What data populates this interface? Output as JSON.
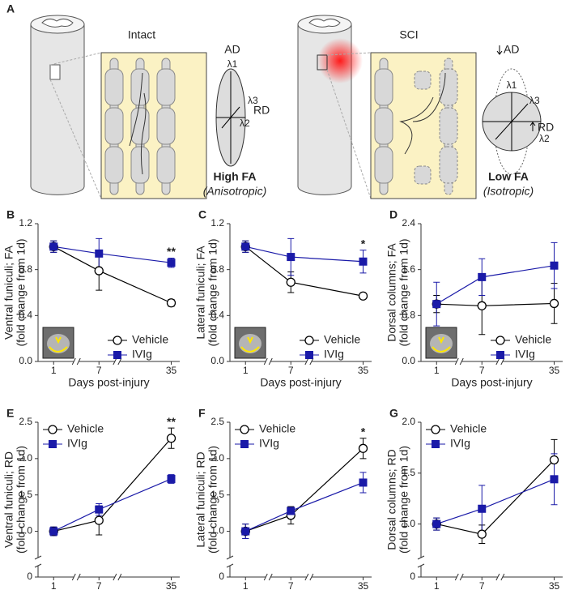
{
  "diagram": {
    "panel": "A",
    "left": {
      "title": "Intact",
      "ad": "AD",
      "l1": "λ1",
      "l3": "λ3",
      "rd": "RD",
      "l2": "λ2",
      "fa": "High FA",
      "kind": "(Anisotropic)"
    },
    "right": {
      "title": "SCI",
      "ad": "AD",
      "l1": "λ1",
      "l3": "λ3",
      "rd": "RD",
      "l2": "λ2",
      "fa": "Low FA",
      "kind": "(Isotropic)"
    }
  },
  "chart_data": [
    {
      "type": "line",
      "panel": "B",
      "ylabel": [
        "Ventral funiculi; FA",
        "(fold change from 1d)"
      ],
      "xlabel": "Days post-injury",
      "categories": [
        "1",
        "7",
        "35"
      ],
      "ylim": [
        0,
        1.2
      ],
      "yticks": [
        {
          "value": 0,
          "label": "0.0"
        },
        0.4,
        0.8,
        1.2
      ],
      "legend": "lower right",
      "annotation": "**",
      "inset": true,
      "series": [
        {
          "name": "Vehicle",
          "color": "#000000",
          "marker": "circle",
          "values": [
            1.0,
            0.79,
            0.51
          ],
          "errors": [
            0.05,
            0.17,
            0.03
          ]
        },
        {
          "name": "IVIg",
          "color": "#1a1aa8",
          "marker": "square",
          "values": [
            1.0,
            0.94,
            0.86
          ],
          "errors": [
            0.05,
            0.13,
            0.04
          ]
        }
      ]
    },
    {
      "type": "line",
      "panel": "C",
      "ylabel": [
        "Lateral funiculi; FA",
        "(fold change from 1d)"
      ],
      "xlabel": "Days post-injury",
      "categories": [
        "1",
        "7",
        "35"
      ],
      "ylim": [
        0,
        1.2
      ],
      "yticks": [
        {
          "value": 0,
          "label": "0.0"
        },
        0.4,
        0.8,
        1.2
      ],
      "legend": "lower right",
      "annotation": "*",
      "inset": true,
      "series": [
        {
          "name": "Vehicle",
          "color": "#000000",
          "marker": "circle",
          "values": [
            1.0,
            0.69,
            0.57
          ],
          "errors": [
            0.05,
            0.09,
            0.01
          ]
        },
        {
          "name": "IVIg",
          "color": "#1a1aa8",
          "marker": "square",
          "values": [
            1.0,
            0.91,
            0.87
          ],
          "errors": [
            0.05,
            0.16,
            0.1
          ]
        }
      ]
    },
    {
      "type": "line",
      "panel": "D",
      "ylabel": [
        "Dorsal columns; FA",
        "(fold change from 1d)"
      ],
      "xlabel": "Days post-injury",
      "categories": [
        "1",
        "7",
        "35"
      ],
      "ylim": [
        0,
        2.4
      ],
      "yticks": [
        {
          "value": 0,
          "label": "0.0"
        },
        0.8,
        1.6,
        2.4
      ],
      "legend": "lower right",
      "inset": true,
      "series": [
        {
          "name": "Vehicle",
          "color": "#000000",
          "marker": "circle",
          "values": [
            1.0,
            0.97,
            1.01
          ],
          "errors": [
            0.15,
            0.5,
            0.35
          ]
        },
        {
          "name": "IVIg",
          "color": "#1a1aa8",
          "marker": "square",
          "values": [
            1.0,
            1.47,
            1.67
          ],
          "errors": [
            0.38,
            0.32,
            0.4
          ]
        }
      ]
    },
    {
      "type": "line",
      "panel": "E",
      "ylabel": [
        "Ventral funiculi; RD",
        "(fold change from 1d)"
      ],
      "xlabel": "Days post-injury",
      "categories": [
        "1",
        "7",
        "35"
      ],
      "ylim": [
        0,
        2.5
      ],
      "ybreak": [
        0.2,
        0.75
      ],
      "yticks": [
        0,
        {
          "value": 1,
          "label": "1.0"
        },
        1.5,
        {
          "value": 2,
          "label": "2.0"
        },
        2.5
      ],
      "legend": "upper left",
      "annotation": "**",
      "series": [
        {
          "name": "Vehicle",
          "color": "#000000",
          "marker": "circle",
          "values": [
            1.0,
            1.15,
            2.28
          ],
          "errors": [
            0.06,
            0.2,
            0.14
          ]
        },
        {
          "name": "IVIg",
          "color": "#1a1aa8",
          "marker": "square",
          "values": [
            1.0,
            1.3,
            1.72
          ],
          "errors": [
            0.06,
            0.08,
            0.06
          ]
        }
      ]
    },
    {
      "type": "line",
      "panel": "F",
      "ylabel": [
        "Lateral funiculi; RD",
        "(fold change from 1d)"
      ],
      "xlabel": "Days post-injury",
      "categories": [
        "1",
        "7",
        "35"
      ],
      "ylim": [
        0,
        2.5
      ],
      "ybreak": [
        0.2,
        0.75
      ],
      "yticks": [
        0,
        {
          "value": 1,
          "label": "1.0"
        },
        1.5,
        {
          "value": 2,
          "label": "2.0"
        },
        2.5
      ],
      "legend": "upper left",
      "annotation": "*",
      "series": [
        {
          "name": "Vehicle",
          "color": "#000000",
          "marker": "circle",
          "values": [
            1.0,
            1.22,
            2.14
          ],
          "errors": [
            0.1,
            0.12,
            0.14
          ]
        },
        {
          "name": "IVIg",
          "color": "#1a1aa8",
          "marker": "square",
          "values": [
            1.0,
            1.28,
            1.67
          ],
          "errors": [
            0.1,
            0.05,
            0.14
          ]
        }
      ]
    },
    {
      "type": "line",
      "panel": "G",
      "ylabel": [
        "Dorsal columns; RD",
        "(fold change from 1d)"
      ],
      "xlabel": "Days post-injury",
      "categories": [
        "1",
        "7",
        "35"
      ],
      "ylim": [
        0,
        2.0
      ],
      "ybreak": [
        0.2,
        0.75
      ],
      "yticks": [
        0,
        {
          "value": 1,
          "label": "1.0"
        },
        1.5,
        {
          "value": 2,
          "label": "2.0"
        }
      ],
      "legend": "upper left",
      "series": [
        {
          "name": "Vehicle",
          "color": "#000000",
          "marker": "circle",
          "values": [
            1.0,
            0.9,
            1.63
          ],
          "errors": [
            0.06,
            0.09,
            0.2
          ]
        },
        {
          "name": "IVIg",
          "color": "#1a1aa8",
          "marker": "square",
          "values": [
            1.0,
            1.15,
            1.44
          ],
          "errors": [
            0.06,
            0.23,
            0.25
          ]
        }
      ]
    }
  ]
}
